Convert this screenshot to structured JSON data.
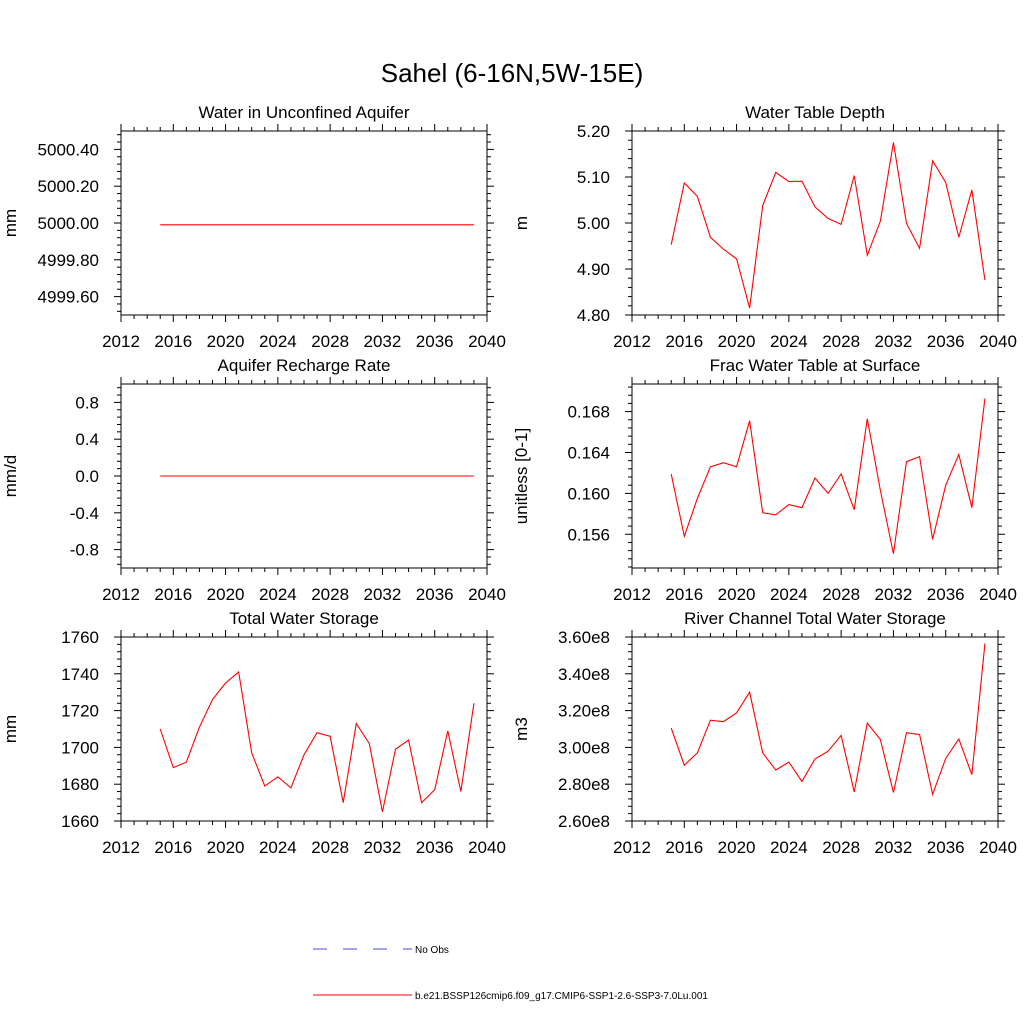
{
  "figure_title": "Sahel (6-16N,5W-15E)",
  "legend": {
    "obs_label": "No Obs",
    "model_label": "b.e21.BSSP126cmip6.f09_g17.CMIP6-SSP1-2.6-SSP3-7.0Lu.001",
    "obs_color": "#4a4ad6",
    "model_color": "#ff0000"
  },
  "chart_data": [
    {
      "id": "aquifer",
      "type": "line",
      "title": "Water in Unconfined Aquifer",
      "xlabel": "",
      "ylabel": "mm",
      "xlim": [
        2012,
        2040
      ],
      "xticks": [
        2012,
        2016,
        2020,
        2024,
        2028,
        2032,
        2036,
        2040
      ],
      "ylim": [
        4999.5,
        5000.5
      ],
      "yticks": [
        4999.6,
        4999.8,
        5000.0,
        5000.2,
        5000.4
      ],
      "ytick_labels": [
        "4999.60",
        "4999.80",
        "5000.00",
        "5000.20",
        "5000.40"
      ],
      "x": [
        2015,
        2016,
        2017,
        2018,
        2019,
        2020,
        2021,
        2022,
        2023,
        2024,
        2025,
        2026,
        2027,
        2028,
        2029,
        2030,
        2031,
        2032,
        2033,
        2034,
        2035,
        2036,
        2037,
        2038,
        2039
      ],
      "series": [
        {
          "values": [
            4999.99,
            4999.99,
            4999.99,
            4999.99,
            4999.99,
            4999.99,
            4999.99,
            4999.99,
            4999.99,
            4999.99,
            4999.99,
            4999.99,
            4999.99,
            4999.99,
            4999.99,
            4999.99,
            4999.99,
            4999.99,
            4999.99,
            4999.99,
            4999.99,
            4999.99,
            4999.99,
            4999.99,
            4999.99
          ]
        }
      ]
    },
    {
      "id": "wtd",
      "type": "line",
      "title": "Water Table Depth",
      "xlabel": "",
      "ylabel": "m",
      "xlim": [
        2012,
        2040
      ],
      "xticks": [
        2012,
        2016,
        2020,
        2024,
        2028,
        2032,
        2036,
        2040
      ],
      "ylim": [
        4.8,
        5.2
      ],
      "yticks": [
        4.8,
        4.9,
        5.0,
        5.1,
        5.2
      ],
      "ytick_labels": [
        "4.80",
        "4.90",
        "5.00",
        "5.10",
        "5.20"
      ],
      "x": [
        2015,
        2016,
        2017,
        2018,
        2019,
        2020,
        2021,
        2022,
        2023,
        2024,
        2025,
        2026,
        2027,
        2028,
        2029,
        2030,
        2031,
        2032,
        2033,
        2034,
        2035,
        2036,
        2037,
        2038,
        2039
      ],
      "series": [
        {
          "values": [
            4.953,
            5.087,
            5.058,
            4.969,
            4.943,
            4.922,
            4.815,
            5.038,
            5.11,
            5.09,
            5.091,
            5.035,
            5.01,
            4.997,
            5.103,
            4.93,
            5.004,
            5.175,
            4.999,
            4.945,
            5.135,
            5.088,
            4.969,
            5.072,
            4.876
          ]
        }
      ]
    },
    {
      "id": "recharge",
      "type": "line",
      "title": "Aquifer Recharge Rate",
      "xlabel": "",
      "ylabel": "mm/d",
      "xlim": [
        2012,
        2040
      ],
      "xticks": [
        2012,
        2016,
        2020,
        2024,
        2028,
        2032,
        2036,
        2040
      ],
      "ylim": [
        -1.0,
        1.0
      ],
      "yticks": [
        -0.8,
        -0.4,
        0.0,
        0.4,
        0.8
      ],
      "ytick_labels": [
        "-0.8",
        "-0.4",
        "0.0",
        "0.4",
        "0.8"
      ],
      "x": [
        2015,
        2016,
        2017,
        2018,
        2019,
        2020,
        2021,
        2022,
        2023,
        2024,
        2025,
        2026,
        2027,
        2028,
        2029,
        2030,
        2031,
        2032,
        2033,
        2034,
        2035,
        2036,
        2037,
        2038,
        2039
      ],
      "series": [
        {
          "values": [
            0,
            0,
            0,
            0,
            0,
            0,
            0,
            0,
            0,
            0,
            0,
            0,
            0,
            0,
            0,
            0,
            0,
            0,
            0,
            0,
            0,
            0,
            0,
            0,
            0
          ]
        }
      ]
    },
    {
      "id": "fracsat",
      "type": "line",
      "title": "Frac Water Table at Surface",
      "xlabel": "",
      "ylabel": "unitless [0-1]",
      "xlim": [
        2012,
        2040
      ],
      "xticks": [
        2012,
        2016,
        2020,
        2024,
        2028,
        2032,
        2036,
        2040
      ],
      "ylim": [
        0.1527,
        0.1707
      ],
      "yticks": [
        0.156,
        0.16,
        0.164,
        0.168
      ],
      "ytick_labels": [
        "0.156",
        "0.160",
        "0.164",
        "0.168"
      ],
      "x": [
        2015,
        2016,
        2017,
        2018,
        2019,
        2020,
        2021,
        2022,
        2023,
        2024,
        2025,
        2026,
        2027,
        2028,
        2029,
        2030,
        2031,
        2032,
        2033,
        2034,
        2035,
        2036,
        2037,
        2038,
        2039
      ],
      "series": [
        {
          "values": [
            0.1619,
            0.1558,
            0.1595,
            0.1626,
            0.163,
            0.1626,
            0.1671,
            0.1581,
            0.1579,
            0.1589,
            0.1586,
            0.1615,
            0.16,
            0.1619,
            0.1584,
            0.1673,
            0.1603,
            0.1541,
            0.1631,
            0.1636,
            0.1555,
            0.1608,
            0.1638,
            0.1586,
            0.1693
          ]
        }
      ]
    },
    {
      "id": "tws",
      "type": "line",
      "title": "Total Water Storage",
      "xlabel": "",
      "ylabel": "mm",
      "xlim": [
        2012,
        2040
      ],
      "xticks": [
        2012,
        2016,
        2020,
        2024,
        2028,
        2032,
        2036,
        2040
      ],
      "ylim": [
        1660,
        1760
      ],
      "yticks": [
        1660,
        1680,
        1700,
        1720,
        1740,
        1760
      ],
      "ytick_labels": [
        "1660",
        "1680",
        "1700",
        "1720",
        "1740",
        "1760"
      ],
      "x": [
        2015,
        2016,
        2017,
        2018,
        2019,
        2020,
        2021,
        2022,
        2023,
        2024,
        2025,
        2026,
        2027,
        2028,
        2029,
        2030,
        2031,
        2032,
        2033,
        2034,
        2035,
        2036,
        2037,
        2038,
        2039
      ],
      "series": [
        {
          "values": [
            1710,
            1689,
            1692,
            1711,
            1726,
            1735,
            1741,
            1697,
            1679,
            1684,
            1678,
            1696,
            1708,
            1706,
            1670,
            1713,
            1702,
            1665,
            1699,
            1704,
            1670,
            1677,
            1709,
            1676,
            1724
          ]
        }
      ]
    },
    {
      "id": "river",
      "type": "line",
      "title": "River Channel Total Water Storage",
      "xlabel": "",
      "ylabel": "m3",
      "xlim": [
        2012,
        2040
      ],
      "xticks": [
        2012,
        2016,
        2020,
        2024,
        2028,
        2032,
        2036,
        2040
      ],
      "ylim": [
        260000000,
        360000000
      ],
      "yticks": [
        260000000,
        280000000,
        300000000,
        320000000,
        340000000,
        360000000
      ],
      "ytick_labels": [
        "2.60e8",
        "2.80e8",
        "3.00e8",
        "3.20e8",
        "3.40e8",
        "3.60e8"
      ],
      "x": [
        2015,
        2016,
        2017,
        2018,
        2019,
        2020,
        2021,
        2022,
        2023,
        2024,
        2025,
        2026,
        2027,
        2028,
        2029,
        2030,
        2031,
        2032,
        2033,
        2034,
        2035,
        2036,
        2037,
        2038,
        2039
      ],
      "series": [
        {
          "values": [
            310500000,
            290300000,
            297000000,
            314800000,
            314000000,
            318800000,
            330000000,
            297000000,
            287700000,
            292000000,
            281500000,
            293700000,
            297900000,
            306500000,
            275800000,
            313200000,
            304300000,
            275500000,
            308000000,
            307000000,
            274500000,
            294000000,
            304600000,
            285200000,
            356500000
          ]
        }
      ]
    }
  ]
}
